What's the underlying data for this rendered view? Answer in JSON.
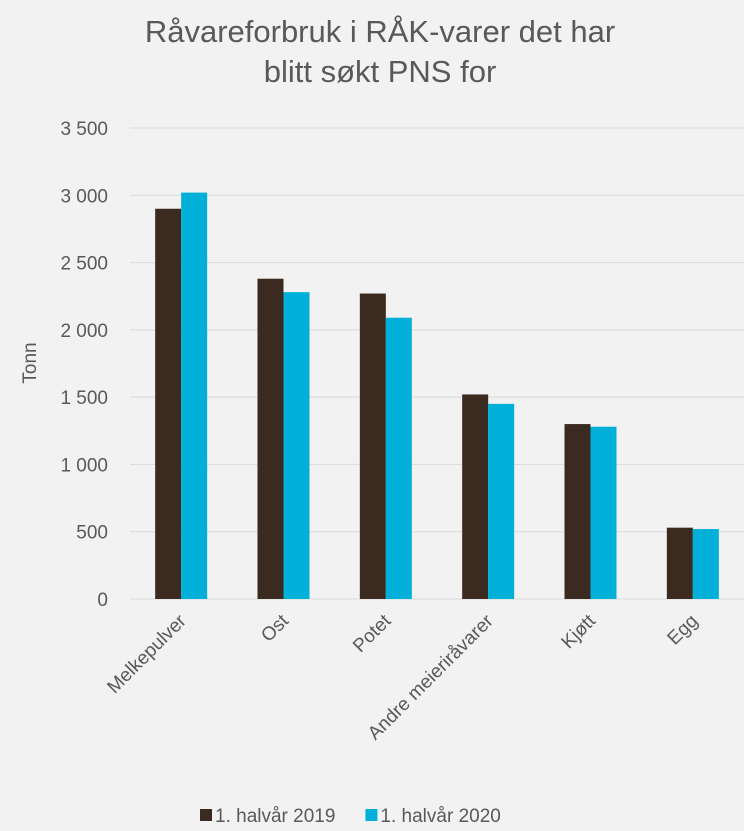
{
  "chart_data": {
    "type": "bar",
    "title": "Råvareforbruk i RÅK-varer det har blitt søkt PNS for",
    "y_label": "Tonn",
    "categories": [
      "Melkepulver",
      "Ost",
      "Potet",
      "Andre meieriråvarer",
      "Kjøtt",
      "Egg"
    ],
    "series": [
      {
        "name": "1. halvår 2019",
        "color": "#3b2a20",
        "values": [
          2900,
          2380,
          2270,
          1520,
          1300,
          530
        ]
      },
      {
        "name": "1. halvår 2020",
        "color": "#00b0d8",
        "values": [
          3020,
          2280,
          2090,
          1450,
          1280,
          520
        ]
      }
    ],
    "ylim": [
      0,
      3500
    ],
    "yticks": [
      0,
      500,
      {
        "value": 1000,
        "label": "1 000"
      },
      {
        "value": 1500,
        "label": "1 500"
      },
      {
        "value": 2000,
        "label": "2 000"
      },
      {
        "value": 2500,
        "label": "2 500"
      },
      {
        "value": 3000,
        "label": "3 000"
      },
      {
        "value": 3500,
        "label": "3 500"
      }
    ],
    "grid": true,
    "legend": "bottom"
  }
}
